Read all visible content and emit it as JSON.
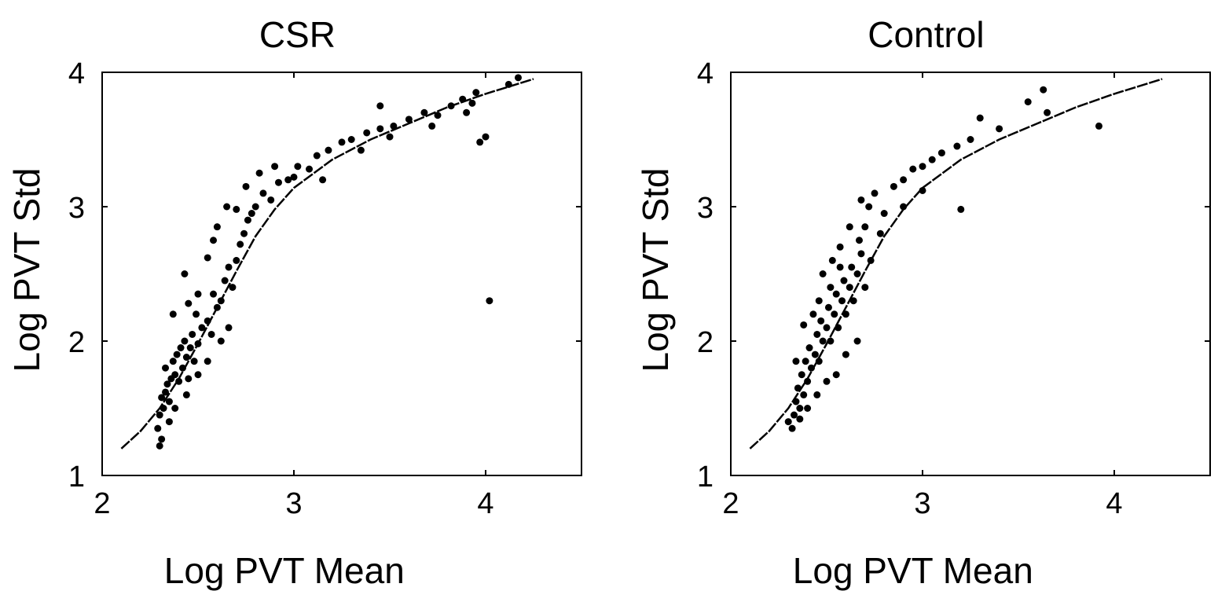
{
  "chart_data": [
    {
      "type": "scatter",
      "title": "CSR",
      "xlabel": "Log PVT Mean",
      "ylabel": "Log PVT Std",
      "xlim": [
        2,
        4.5
      ],
      "ylim": [
        1,
        4
      ],
      "xticks": [
        2,
        3,
        4
      ],
      "yticks": [
        1,
        2,
        3,
        4
      ],
      "grid": false,
      "marker_color": "#000000",
      "points": [
        [
          2.3,
          1.22
        ],
        [
          2.31,
          1.27
        ],
        [
          2.29,
          1.35
        ],
        [
          2.3,
          1.45
        ],
        [
          2.32,
          1.5
        ],
        [
          2.31,
          1.58
        ],
        [
          2.33,
          1.62
        ],
        [
          2.35,
          1.55
        ],
        [
          2.34,
          1.68
        ],
        [
          2.36,
          1.72
        ],
        [
          2.33,
          1.8
        ],
        [
          2.38,
          1.75
        ],
        [
          2.4,
          1.7
        ],
        [
          2.37,
          1.85
        ],
        [
          2.39,
          1.9
        ],
        [
          2.42,
          1.8
        ],
        [
          2.41,
          1.95
        ],
        [
          2.44,
          1.88
        ],
        [
          2.45,
          1.72
        ],
        [
          2.43,
          2.0
        ],
        [
          2.46,
          1.95
        ],
        [
          2.48,
          1.85
        ],
        [
          2.47,
          2.05
        ],
        [
          2.5,
          1.98
        ],
        [
          2.52,
          2.1
        ],
        [
          2.49,
          2.2
        ],
        [
          2.55,
          2.15
        ],
        [
          2.57,
          2.05
        ],
        [
          2.6,
          2.25
        ],
        [
          2.58,
          2.35
        ],
        [
          2.62,
          2.3
        ],
        [
          2.64,
          2.45
        ],
        [
          2.66,
          2.55
        ],
        [
          2.68,
          2.4
        ],
        [
          2.7,
          2.6
        ],
        [
          2.72,
          2.72
        ],
        [
          2.74,
          2.8
        ],
        [
          2.76,
          2.9
        ],
        [
          2.78,
          2.95
        ],
        [
          2.8,
          3.0
        ],
        [
          2.84,
          3.1
        ],
        [
          2.88,
          3.05
        ],
        [
          2.92,
          3.18
        ],
        [
          2.97,
          3.2
        ],
        [
          3.02,
          3.3
        ],
        [
          3.08,
          3.28
        ],
        [
          3.12,
          3.38
        ],
        [
          3.18,
          3.42
        ],
        [
          3.25,
          3.48
        ],
        [
          3.3,
          3.5
        ],
        [
          3.38,
          3.55
        ],
        [
          3.45,
          3.58
        ],
        [
          3.52,
          3.6
        ],
        [
          3.6,
          3.65
        ],
        [
          3.68,
          3.7
        ],
        [
          3.75,
          3.68
        ],
        [
          3.82,
          3.75
        ],
        [
          3.88,
          3.8
        ],
        [
          3.93,
          3.77
        ],
        [
          3.95,
          3.85
        ],
        [
          4.12,
          3.91
        ],
        [
          4.17,
          3.96
        ],
        [
          3.45,
          3.75
        ],
        [
          4.0,
          3.52
        ],
        [
          3.97,
          3.48
        ],
        [
          4.02,
          2.3
        ],
        [
          2.37,
          2.2
        ],
        [
          2.43,
          2.5
        ],
        [
          2.45,
          2.28
        ],
        [
          2.5,
          2.35
        ],
        [
          2.55,
          2.62
        ],
        [
          2.58,
          2.75
        ],
        [
          2.6,
          2.85
        ],
        [
          2.65,
          3.0
        ],
        [
          2.7,
          2.98
        ],
        [
          2.75,
          3.15
        ],
        [
          2.82,
          3.25
        ],
        [
          2.9,
          3.3
        ],
        [
          3.0,
          3.22
        ],
        [
          3.15,
          3.2
        ],
        [
          3.35,
          3.42
        ],
        [
          3.5,
          3.52
        ],
        [
          3.72,
          3.6
        ],
        [
          3.9,
          3.7
        ],
        [
          2.66,
          2.1
        ],
        [
          2.62,
          2.0
        ],
        [
          2.55,
          1.85
        ],
        [
          2.5,
          1.75
        ],
        [
          2.44,
          1.6
        ],
        [
          2.38,
          1.5
        ],
        [
          2.35,
          1.4
        ]
      ]
    },
    {
      "type": "scatter",
      "title": "Control",
      "xlabel": "Log PVT Mean",
      "ylabel": "Log PVT Std",
      "xlim": [
        2,
        4.5
      ],
      "ylim": [
        1,
        4
      ],
      "xticks": [
        2,
        3,
        4
      ],
      "yticks": [
        1,
        2,
        3,
        4
      ],
      "grid": false,
      "marker_color": "#000000",
      "points": [
        [
          2.32,
          1.35
        ],
        [
          2.33,
          1.45
        ],
        [
          2.34,
          1.55
        ],
        [
          2.36,
          1.5
        ],
        [
          2.35,
          1.65
        ],
        [
          2.38,
          1.6
        ],
        [
          2.37,
          1.75
        ],
        [
          2.4,
          1.7
        ],
        [
          2.39,
          1.85
        ],
        [
          2.42,
          1.8
        ],
        [
          2.41,
          1.95
        ],
        [
          2.44,
          1.9
        ],
        [
          2.46,
          1.85
        ],
        [
          2.45,
          2.05
        ],
        [
          2.48,
          2.0
        ],
        [
          2.47,
          2.15
        ],
        [
          2.5,
          2.1
        ],
        [
          2.52,
          2.0
        ],
        [
          2.51,
          2.25
        ],
        [
          2.54,
          2.2
        ],
        [
          2.56,
          2.1
        ],
        [
          2.55,
          2.35
        ],
        [
          2.58,
          2.3
        ],
        [
          2.6,
          2.2
        ],
        [
          2.59,
          2.45
        ],
        [
          2.62,
          2.4
        ],
        [
          2.64,
          2.3
        ],
        [
          2.63,
          2.55
        ],
        [
          2.66,
          2.5
        ],
        [
          2.68,
          2.65
        ],
        [
          2.67,
          2.75
        ],
        [
          2.7,
          2.85
        ],
        [
          2.72,
          3.0
        ],
        [
          2.68,
          3.05
        ],
        [
          2.75,
          3.1
        ],
        [
          2.8,
          2.95
        ],
        [
          2.85,
          3.15
        ],
        [
          2.9,
          3.2
        ],
        [
          2.95,
          3.28
        ],
        [
          3.0,
          3.3
        ],
        [
          3.05,
          3.35
        ],
        [
          3.1,
          3.4
        ],
        [
          3.18,
          3.45
        ],
        [
          3.25,
          3.5
        ],
        [
          3.3,
          3.66
        ],
        [
          3.4,
          3.58
        ],
        [
          3.55,
          3.78
        ],
        [
          3.63,
          3.87
        ],
        [
          3.65,
          3.7
        ],
        [
          3.2,
          2.98
        ],
        [
          3.92,
          3.6
        ],
        [
          2.3,
          1.4
        ],
        [
          2.34,
          1.85
        ],
        [
          2.38,
          2.12
        ],
        [
          2.43,
          2.2
        ],
        [
          2.48,
          2.5
        ],
        [
          2.53,
          2.6
        ],
        [
          2.57,
          2.7
        ],
        [
          2.62,
          2.85
        ],
        [
          2.66,
          2.0
        ],
        [
          2.6,
          1.9
        ],
        [
          2.55,
          1.75
        ],
        [
          2.5,
          1.7
        ],
        [
          2.45,
          1.6
        ],
        [
          2.4,
          1.5
        ],
        [
          2.36,
          1.42
        ],
        [
          2.57,
          2.55
        ],
        [
          2.52,
          2.4
        ],
        [
          2.46,
          2.3
        ],
        [
          2.7,
          2.4
        ],
        [
          2.73,
          2.6
        ],
        [
          2.78,
          2.8
        ],
        [
          2.9,
          3.0
        ],
        [
          3.0,
          3.12
        ]
      ]
    }
  ],
  "fit_curve": [
    [
      2.1,
      1.2
    ],
    [
      2.2,
      1.33
    ],
    [
      2.3,
      1.5
    ],
    [
      2.4,
      1.72
    ],
    [
      2.5,
      1.98
    ],
    [
      2.6,
      2.25
    ],
    [
      2.7,
      2.52
    ],
    [
      2.8,
      2.78
    ],
    [
      2.9,
      2.98
    ],
    [
      3.0,
      3.14
    ],
    [
      3.2,
      3.35
    ],
    [
      3.4,
      3.5
    ],
    [
      3.6,
      3.62
    ],
    [
      3.8,
      3.74
    ],
    [
      4.0,
      3.84
    ],
    [
      4.25,
      3.95
    ]
  ]
}
